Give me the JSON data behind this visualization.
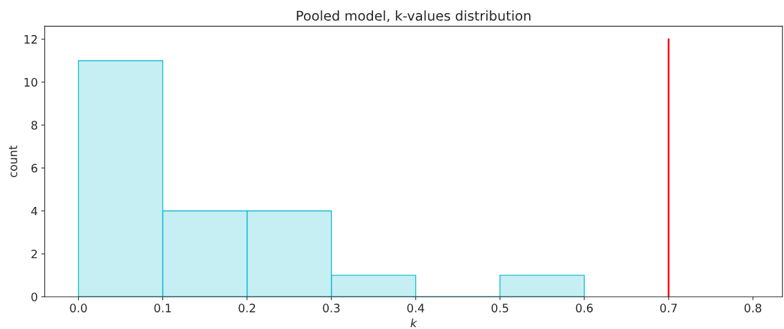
{
  "chart_data": {
    "type": "histogram",
    "title": "Pooled model, k-values distribution",
    "xlabel": "k",
    "ylabel": "count",
    "bins": [
      0.0,
      0.1,
      0.2,
      0.3,
      0.4,
      0.5,
      0.6
    ],
    "series": [
      {
        "color": "#17becf",
        "values": [
          11,
          4,
          4,
          1,
          0,
          1
        ]
      },
      {
        "type": "line",
        "color": "#ff0000",
        "x": [
          0.7,
          0.7
        ],
        "values": [
          0,
          12
        ]
      }
    ],
    "xlim": [
      -0.04,
      0.835
    ],
    "ylim": [
      0,
      12.6
    ],
    "xticks": [
      {
        "value": 0.0,
        "label": "0.0"
      },
      0.1,
      0.2,
      0.3,
      0.4,
      0.5,
      0.6,
      0.7,
      0.8
    ],
    "yticks": [
      0,
      2,
      4,
      6,
      8,
      10,
      12
    ],
    "grid": false,
    "legend": false
  }
}
